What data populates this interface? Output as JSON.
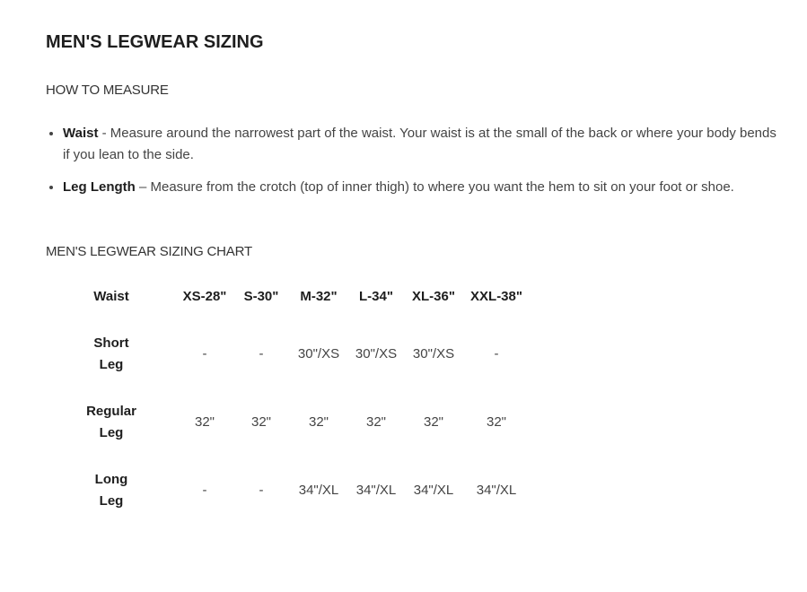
{
  "title": "MEN'S LEGWEAR SIZING",
  "how_to_measure": {
    "heading": "HOW TO MEASURE",
    "items": [
      {
        "term": "Waist",
        "text": " - Measure around the narrowest part of the waist. Your waist is at the small of the back or where your body bends if you lean to the side."
      },
      {
        "term": "Leg Length",
        "text": " – Measure from the crotch (top of inner thigh) to where you want the hem to sit on your foot or shoe."
      }
    ]
  },
  "chart": {
    "heading": "MEN'S LEGWEAR SIZING CHART",
    "header": [
      "Waist",
      "XS-28\"",
      "S-30\"",
      "M-32\"",
      "L-34\"",
      "XL-36\"",
      "XXL-38\""
    ],
    "rows": [
      {
        "label": [
          "Short",
          "Leg"
        ],
        "values": [
          "-",
          "-",
          "30\"/XS",
          "30\"/XS",
          "30\"/XS",
          "-"
        ]
      },
      {
        "label": [
          "Regular",
          "Leg"
        ],
        "values": [
          "32\"",
          "32\"",
          "32\"",
          "32\"",
          "32\"",
          "32\""
        ]
      },
      {
        "label": [
          "Long",
          "Leg"
        ],
        "values": [
          "-",
          "-",
          "34\"/XL",
          "34\"/XL",
          "34\"/XL",
          "34\"/XL"
        ]
      }
    ]
  }
}
